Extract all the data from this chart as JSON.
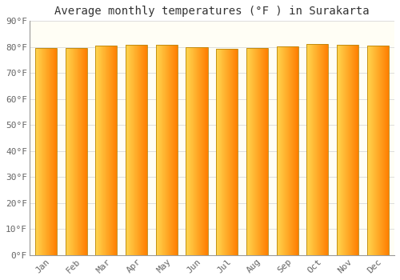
{
  "title": "Average monthly temperatures (°F ) in Surakarta",
  "months": [
    "Jan",
    "Feb",
    "Mar",
    "Apr",
    "May",
    "Jun",
    "Jul",
    "Aug",
    "Sep",
    "Oct",
    "Nov",
    "Dec"
  ],
  "values": [
    79.7,
    79.5,
    80.4,
    81.0,
    80.8,
    79.9,
    79.3,
    79.5,
    80.3,
    81.3,
    81.0,
    80.6
  ],
  "ylim": [
    0,
    90
  ],
  "yticks": [
    0,
    10,
    20,
    30,
    40,
    50,
    60,
    70,
    80,
    90
  ],
  "bar_color_left": "#FFD54F",
  "bar_color_right": "#FFA000",
  "bar_edge_color": "#B8860B",
  "background_color": "#FFFFFF",
  "plot_bg_color": "#FFFEF5",
  "grid_color": "#DDDDDD",
  "title_fontsize": 10,
  "tick_fontsize": 8,
  "bar_width": 0.72
}
